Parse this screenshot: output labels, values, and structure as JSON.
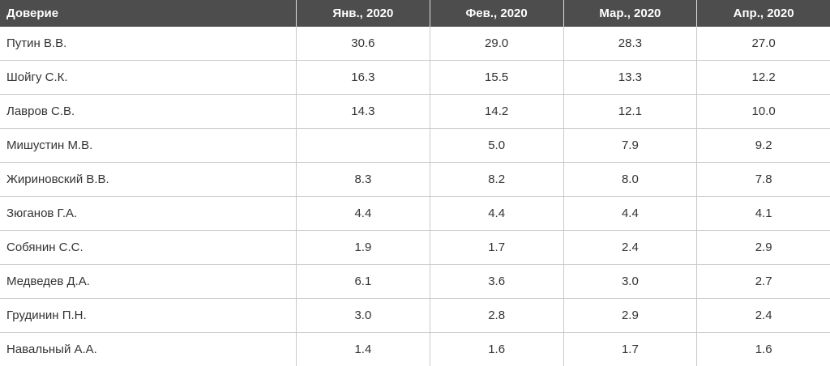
{
  "table": {
    "header": [
      "Доверие",
      "Янв., 2020",
      "Фев., 2020",
      "Мар., 2020",
      "Апр., 2020"
    ],
    "rows": [
      {
        "label": "Путин В.В.",
        "values": [
          "30.6",
          "29.0",
          "28.3",
          "27.0"
        ]
      },
      {
        "label": "Шойгу С.К.",
        "values": [
          "16.3",
          "15.5",
          "13.3",
          "12.2"
        ]
      },
      {
        "label": "Лавров С.В.",
        "values": [
          "14.3",
          "14.2",
          "12.1",
          "10.0"
        ]
      },
      {
        "label": "Мишустин М.В.",
        "values": [
          "",
          "5.0",
          "7.9",
          "9.2"
        ]
      },
      {
        "label": "Жириновский В.В.",
        "values": [
          "8.3",
          "8.2",
          "8.0",
          "7.8"
        ]
      },
      {
        "label": "Зюганов Г.А.",
        "values": [
          "4.4",
          "4.4",
          "4.4",
          "4.1"
        ]
      },
      {
        "label": "Собянин С.С.",
        "values": [
          "1.9",
          "1.7",
          "2.4",
          "2.9"
        ]
      },
      {
        "label": "Медведев Д.А.",
        "values": [
          "6.1",
          "3.6",
          "3.0",
          "2.7"
        ]
      },
      {
        "label": "Грудинин П.Н.",
        "values": [
          "3.0",
          "2.8",
          "2.9",
          "2.4"
        ]
      },
      {
        "label": "Навальный А.А.",
        "values": [
          "1.4",
          "1.6",
          "1.7",
          "1.6"
        ]
      }
    ]
  },
  "chart_data": {
    "type": "table",
    "title": "Доверие",
    "categories": [
      "Янв., 2020",
      "Фев., 2020",
      "Мар., 2020",
      "Апр., 2020"
    ],
    "series": [
      {
        "name": "Путин В.В.",
        "values": [
          30.6,
          29.0,
          28.3,
          27.0
        ]
      },
      {
        "name": "Шойгу С.К.",
        "values": [
          16.3,
          15.5,
          13.3,
          12.2
        ]
      },
      {
        "name": "Лавров С.В.",
        "values": [
          14.3,
          14.2,
          12.1,
          10.0
        ]
      },
      {
        "name": "Мишустин М.В.",
        "values": [
          null,
          5.0,
          7.9,
          9.2
        ]
      },
      {
        "name": "Жириновский В.В.",
        "values": [
          8.3,
          8.2,
          8.0,
          7.8
        ]
      },
      {
        "name": "Зюганов Г.А.",
        "values": [
          4.4,
          4.4,
          4.4,
          4.1
        ]
      },
      {
        "name": "Собянин С.С.",
        "values": [
          1.9,
          1.7,
          2.4,
          2.9
        ]
      },
      {
        "name": "Медведев Д.А.",
        "values": [
          6.1,
          3.6,
          3.0,
          2.7
        ]
      },
      {
        "name": "Грудинин П.Н.",
        "values": [
          3.0,
          2.8,
          2.9,
          2.4
        ]
      },
      {
        "name": "Навальный А.А.",
        "values": [
          1.4,
          1.6,
          1.7,
          1.6
        ]
      }
    ]
  },
  "colors": {
    "header_bg": "#4d4d4d",
    "header_text": "#ffffff",
    "body_text": "#333333",
    "row_border": "#c9c9c9",
    "header_separator": "#dcdcdc",
    "background": "#ffffff"
  }
}
